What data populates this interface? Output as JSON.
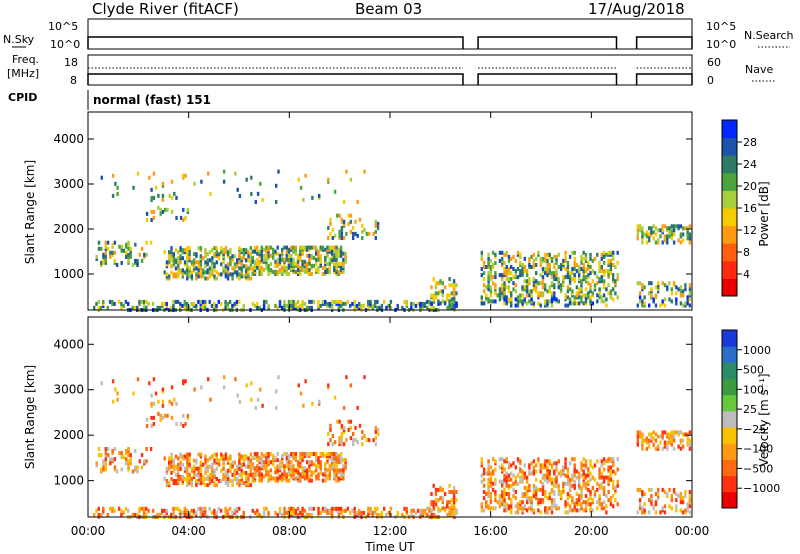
{
  "header": {
    "station": "Clyde River (fitACF)",
    "beam": "Beam 03",
    "date": "17/Aug/2018"
  },
  "status_panels": {
    "nsky_label": "N.Sky",
    "nsearch_label": "N.Search",
    "noise_ticks": [
      "10^5",
      "10^0"
    ],
    "freq_label_1": "Freq.",
    "freq_label_2": "[MHz]",
    "freq_ticks": [
      "18",
      "8"
    ],
    "nave_ticks": [
      "60",
      "0"
    ],
    "nave_label": "Nave",
    "cpid_label": "CPID",
    "cpid_value": "normal (fast) 151"
  },
  "chart_data": [
    {
      "type": "heatmap",
      "name": "power",
      "ylabel": "Slant Range [km]",
      "xlabel": "Time UT",
      "ylim": [
        200,
        4600
      ],
      "xlim": [
        0,
        24
      ],
      "yticks": [
        "4000",
        "3000",
        "2000",
        "1000"
      ],
      "xticks": [
        "00:00",
        "04:00",
        "08:00",
        "12:00",
        "16:00",
        "20:00",
        "00:00"
      ],
      "colorbar": {
        "label": "Power [dB]",
        "ticks": [
          "28",
          "24",
          "20",
          "16",
          "12",
          "8",
          "4"
        ],
        "colors": [
          "#0028ff",
          "#1c52aa",
          "#2d7a66",
          "#4ca33c",
          "#a5cf3c",
          "#f4cc00",
          "#ff9a14",
          "#ff6010",
          "#ff2a10",
          "#e80000"
        ]
      },
      "data_gaps_hours": [
        [
          14.9,
          15.5
        ],
        [
          21.0,
          21.8
        ]
      ]
    },
    {
      "type": "heatmap",
      "name": "velocity",
      "ylabel": "Slant Range [km]",
      "xlabel": "Time UT",
      "ylim": [
        200,
        4600
      ],
      "xlim": [
        0,
        24
      ],
      "yticks": [
        "4000",
        "3000",
        "2000",
        "1000"
      ],
      "xticks": [
        "00:00",
        "04:00",
        "08:00",
        "12:00",
        "16:00",
        "20:00",
        "00:00"
      ],
      "colorbar": {
        "label": "Velocity [m s⁻¹]",
        "ticks": [
          "1000",
          "500",
          "100",
          "25",
          "−25",
          "−100",
          "−500",
          "−1000"
        ],
        "colors": [
          "#1a3ad8",
          "#2a6ec8",
          "#2d8a66",
          "#3c9a40",
          "#66c83c",
          "#bdbdbd",
          "#f7c200",
          "#ff9a14",
          "#ff6a10",
          "#ff3010",
          "#e80000"
        ]
      },
      "data_gaps_hours": [
        [
          14.9,
          15.5
        ],
        [
          21.0,
          21.8
        ]
      ]
    }
  ]
}
